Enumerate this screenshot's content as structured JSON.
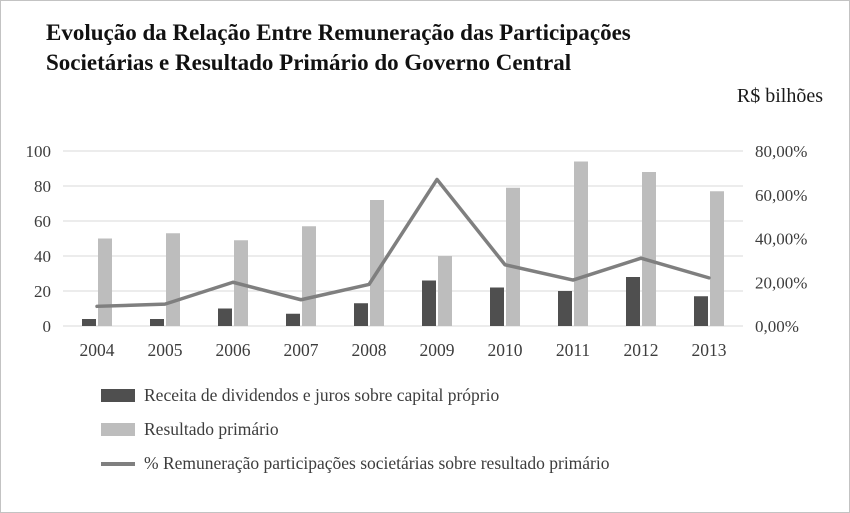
{
  "page": {
    "title": "Evolução da Relação Entre Remuneração das Participações Societárias e Resultado Primário do Governo Central",
    "unit_label": "R$ bilhões"
  },
  "chart_data": {
    "type": "bar+line",
    "title": "Evolução da Relação Entre Remuneração das Participações Societárias e Resultado Primário do Governo Central",
    "unit": "R$ bilhões",
    "categories": [
      "2004",
      "2005",
      "2006",
      "2007",
      "2008",
      "2009",
      "2010",
      "2011",
      "2012",
      "2013"
    ],
    "series": [
      {
        "name": "Receita de dividendos e juros sobre capital próprio",
        "type": "bar",
        "axis": "left",
        "color": "#4f4f4f",
        "values": [
          4,
          4,
          10,
          7,
          13,
          26,
          22,
          20,
          28,
          17
        ]
      },
      {
        "name": "Resultado primário",
        "type": "bar",
        "axis": "left",
        "color": "#bdbdbd",
        "values": [
          50,
          53,
          49,
          57,
          72,
          40,
          79,
          94,
          88,
          77
        ]
      },
      {
        "name": "% Remuneração participações societárias sobre resultado primário",
        "type": "line",
        "axis": "right",
        "color": "#7f7f7f",
        "values": [
          9,
          10,
          20,
          12,
          19,
          67,
          28,
          21,
          31,
          22
        ]
      }
    ],
    "left_axis": {
      "min": 0,
      "max": 100,
      "step": 20,
      "tick_labels": [
        "0",
        "20",
        "40",
        "60",
        "80",
        "100"
      ]
    },
    "right_axis": {
      "min": 0,
      "max": 80,
      "step": 20,
      "tick_labels": [
        "0,00%",
        "20,00%",
        "40,00%",
        "60,00%",
        "80,00%"
      ]
    },
    "grid": true,
    "legend_position": "bottom"
  },
  "colors": {
    "gridline": "#d9d9d9",
    "tick_text": "#3d3d3d"
  }
}
